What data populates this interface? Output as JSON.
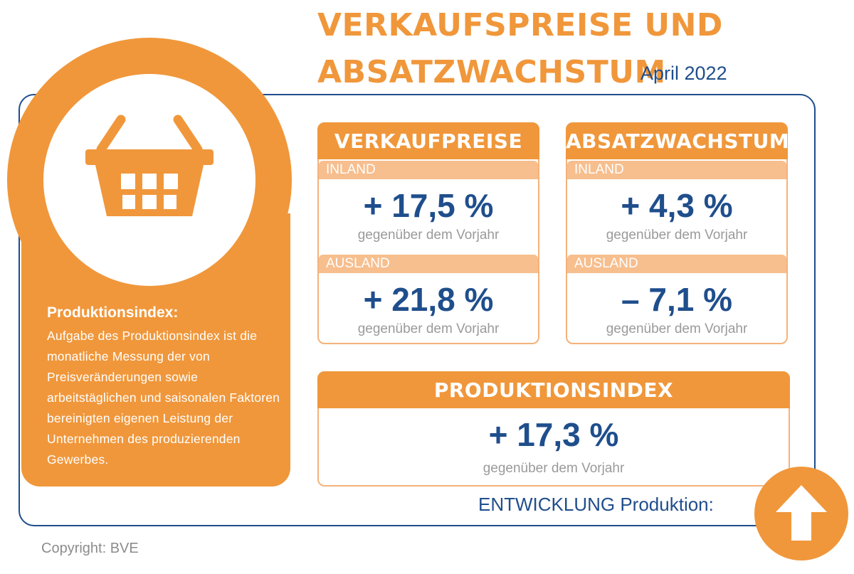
{
  "header": {
    "title_line1": "VERKAUFSPREISE UND",
    "title_line2": "ABSATZWACHSTUM",
    "date": "April 2022"
  },
  "info": {
    "icon": "shopping-basket-icon",
    "heading": "Produktionsindex:",
    "text": "Aufgabe des Produktionsindex ist die monatliche Messung der von Preisveränderungen sowie arbeitstäglichen und saisonalen Faktoren bereinigten eigenen Leistung der Unternehmen des produzierenden Gewerbes."
  },
  "verkaufspreise": {
    "title": "VERKAUFPREISE",
    "inland_label": "INLAND",
    "inland_value": "+ 17,5 %",
    "inland_caption": "gegenüber dem Vorjahr",
    "ausland_label": "AUSLAND",
    "ausland_value": "+ 21,8 %",
    "ausland_caption": "gegenüber dem Vorjahr"
  },
  "absatzwachstum": {
    "title": "ABSATZWACHSTUM",
    "inland_label": "INLAND",
    "inland_value": "+ 4,3 %",
    "inland_caption": "gegenüber dem Vorjahr",
    "ausland_label": "AUSLAND",
    "ausland_value": "– 7,1 %",
    "ausland_caption": "gegenüber dem Vorjahr"
  },
  "produktionsindex": {
    "title": "PRODUKTIONSINDEX",
    "value": "+ 17,3 %",
    "caption": "gegenüber dem Vorjahr"
  },
  "entwicklung": {
    "label": "ENTWICKLUNG Produktion:",
    "icon": "arrow-up-icon"
  },
  "footer": {
    "copyright": "Copyright: BVE"
  },
  "colors": {
    "orange": "#f0973b",
    "light_orange": "#f7be8e",
    "blue": "#1f4e8c",
    "gray": "#9a9a9a"
  }
}
